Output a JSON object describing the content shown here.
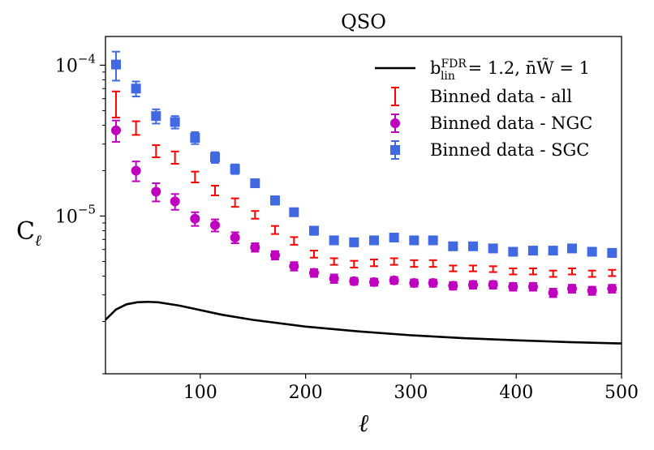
{
  "chart_data": {
    "type": "scatter",
    "title": "QSO",
    "xlabel": "ℓ",
    "ylabel_base": "C",
    "ylabel_sub": "ℓ",
    "xlim": [
      10,
      500
    ],
    "ylim": [
      9e-07,
      0.000155
    ],
    "yscale": "log",
    "xticks": [
      100,
      200,
      300,
      400,
      500
    ],
    "xtick_labels": [
      "100",
      "200",
      "300",
      "400",
      "500"
    ],
    "yticks": [
      1e-05,
      0.0001
    ],
    "ytick_base": "10",
    "ytick_exponents": [
      "−5",
      "−4"
    ],
    "legend_position": "top-right",
    "theory": {
      "name_html": "b<tspan dy=\"-7\" font-size=\"13\">FDR</tspan><tspan dx=\"-27\" dy=\"13\" font-size=\"13\">lin</tspan><tspan dy=\"-6\"> = 1.2, n̄W̃ = 1</tspan>",
      "legend_label": "b_lin^FDR = 1.2, n̄W̃ = 1",
      "label_parts": {
        "b": "b",
        "sup": "FDR",
        "sub": "lin",
        "rest": " = 1.2, n̄W̃ = 1"
      },
      "color": "#000000",
      "x": [
        10,
        20,
        30,
        40,
        50,
        60,
        80,
        100,
        120,
        150,
        200,
        250,
        300,
        350,
        400,
        450,
        500
      ],
      "y": [
        2.05e-06,
        2.4e-06,
        2.6e-06,
        2.68e-06,
        2.7e-06,
        2.68e-06,
        2.55e-06,
        2.38e-06,
        2.22e-06,
        2.05e-06,
        1.85e-06,
        1.72e-06,
        1.62e-06,
        1.55e-06,
        1.5e-06,
        1.46e-06,
        1.43e-06
      ]
    },
    "series": [
      {
        "name": "Binned data - all",
        "marker": "errorbar",
        "color": "#ff0000",
        "x": [
          20,
          39,
          58,
          76,
          95,
          114,
          133,
          152,
          171,
          189,
          208,
          227,
          246,
          265,
          284,
          303,
          321,
          340,
          359,
          378,
          397,
          416,
          435,
          453,
          472,
          491
        ],
        "y": [
          5.6e-05,
          3.85e-05,
          2.7e-05,
          2.45e-05,
          1.82e-05,
          1.48e-05,
          1.23e-05,
          1.02e-05,
          8.1e-06,
          6.85e-06,
          5.6e-06,
          5e-06,
          4.8e-06,
          4.9e-06,
          5e-06,
          4.85e-06,
          4.85e-06,
          4.5e-06,
          4.5e-06,
          4.45e-06,
          4.3e-06,
          4.3e-06,
          4.15e-06,
          4.3e-06,
          4.15e-06,
          4.2e-06
        ],
        "err": [
          1.1e-05,
          4e-06,
          2.5e-06,
          2.3e-06,
          1.5e-06,
          1.1e-06,
          8e-07,
          6e-07,
          5e-07,
          4e-07,
          3e-07,
          2.5e-07,
          2.5e-07,
          2.5e-07,
          2.5e-07,
          2.5e-07,
          2.5e-07,
          2e-07,
          2e-07,
          2e-07,
          2e-07,
          2e-07,
          2e-07,
          2e-07,
          2e-07,
          2e-07
        ]
      },
      {
        "name": "Binned data - NGC",
        "marker": "circle",
        "color": "#bf00bf",
        "x": [
          20,
          39,
          58,
          76,
          95,
          114,
          133,
          152,
          171,
          189,
          208,
          227,
          246,
          265,
          284,
          303,
          321,
          340,
          359,
          378,
          397,
          416,
          435,
          453,
          472,
          491
        ],
        "y": [
          3.7e-05,
          2e-05,
          1.45e-05,
          1.25e-05,
          9.6e-06,
          8.7e-06,
          7.2e-06,
          6.2e-06,
          5.5e-06,
          4.65e-06,
          4.2e-06,
          3.85e-06,
          3.7e-06,
          3.65e-06,
          3.75e-06,
          3.6e-06,
          3.6e-06,
          3.45e-06,
          3.5e-06,
          3.5e-06,
          3.4e-06,
          3.4e-06,
          3.1e-06,
          3.3e-06,
          3.2e-06,
          3.3e-06
        ],
        "err": [
          6e-06,
          3e-06,
          2e-06,
          1.5e-06,
          1e-06,
          8e-07,
          6e-07,
          4e-07,
          3.5e-07,
          3e-07,
          2.5e-07,
          2.5e-07,
          2e-07,
          2e-07,
          2e-07,
          2e-07,
          2e-07,
          2e-07,
          2e-07,
          2e-07,
          2e-07,
          2e-07,
          2e-07,
          2e-07,
          2e-07,
          2e-07
        ]
      },
      {
        "name": "Binned data - SGC",
        "marker": "square",
        "color": "#4169e1",
        "x": [
          20,
          39,
          58,
          76,
          95,
          114,
          133,
          152,
          171,
          189,
          208,
          227,
          246,
          265,
          284,
          303,
          321,
          340,
          359,
          378,
          397,
          416,
          435,
          453,
          472,
          491
        ],
        "y": [
          0.000101,
          7e-05,
          4.6e-05,
          4.2e-05,
          3.3e-05,
          2.45e-05,
          2.05e-05,
          1.65e-05,
          1.27e-05,
          1.06e-05,
          8e-06,
          6.9e-06,
          6.7e-06,
          6.9e-06,
          7.2e-06,
          6.9e-06,
          6.9e-06,
          6.3e-06,
          6.3e-06,
          6.1e-06,
          5.8e-06,
          5.9e-06,
          5.9e-06,
          6.1e-06,
          5.8e-06,
          5.7e-06
        ],
        "err": [
          2.2e-05,
          8e-06,
          5e-06,
          4e-06,
          3e-06,
          2e-06,
          1.5e-06,
          1e-06,
          8e-07,
          6e-07,
          5e-07,
          4e-07,
          4e-07,
          4e-07,
          4e-07,
          4e-07,
          4e-07,
          3.5e-07,
          3.5e-07,
          3.5e-07,
          3.5e-07,
          3.5e-07,
          3.5e-07,
          3.5e-07,
          3.5e-07,
          3.5e-07
        ]
      }
    ]
  }
}
